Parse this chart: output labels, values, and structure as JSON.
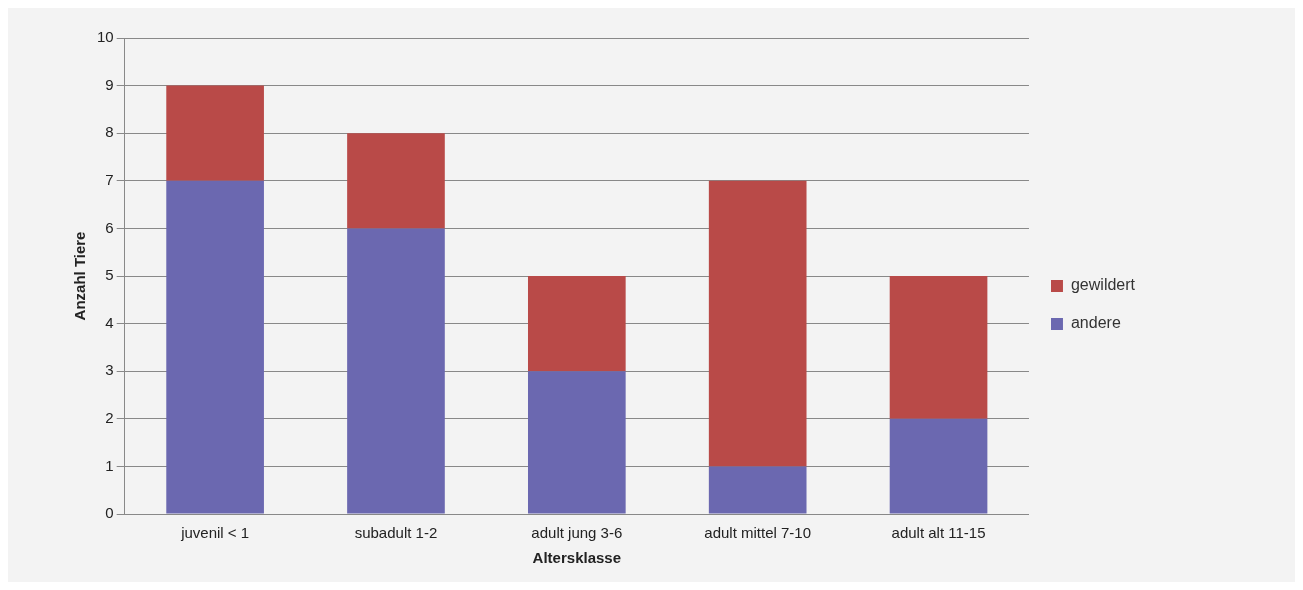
{
  "chart_data": {
    "type": "bar",
    "xlabel": "Altersklasse",
    "ylabel": "Anzahl Tiere",
    "categories": [
      "juvenil < 1",
      "subadult 1-2",
      "adult jung 3-6",
      "adult mittel 7-10",
      "adult alt 11-15"
    ],
    "series": [
      {
        "name": "andere",
        "color": "#6b68b0",
        "values": [
          7,
          6,
          3,
          1,
          2
        ]
      },
      {
        "name": "gewildert",
        "color": "#b94a48",
        "values": [
          2,
          2,
          2,
          6,
          3
        ]
      }
    ],
    "stacked": true,
    "ylim": [
      0,
      10
    ],
    "yticks": [
      0,
      1,
      2,
      3,
      4,
      5,
      6,
      7,
      8,
      9,
      10
    ],
    "grid": "y",
    "legend": "right"
  }
}
